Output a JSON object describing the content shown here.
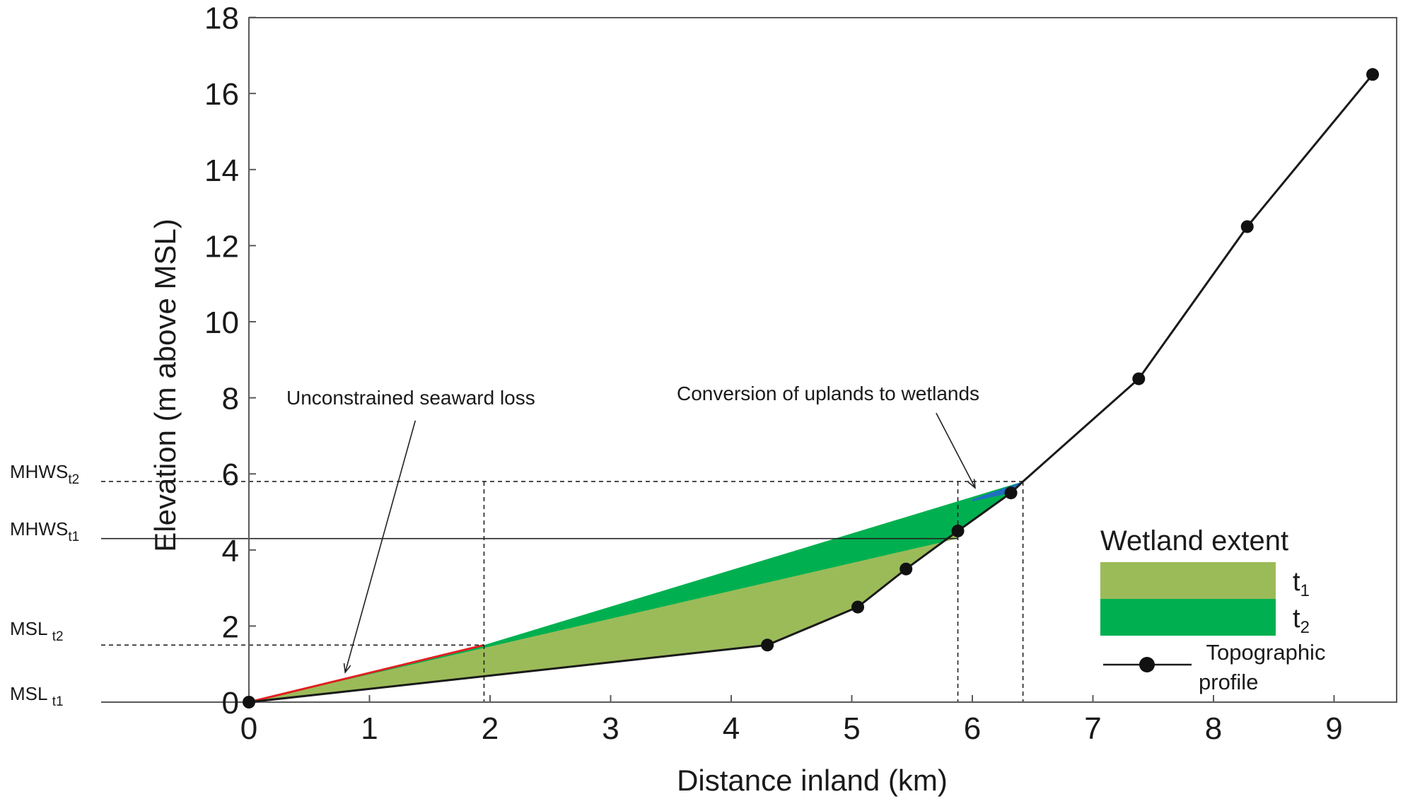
{
  "chart_data": {
    "type": "line",
    "xlabel": "Distance inland (km)",
    "ylabel": "Elevation (m above MSL)",
    "xlim": [
      0,
      9.3
    ],
    "ylim": [
      0,
      18
    ],
    "x_ticks": [
      "0",
      "1",
      "2",
      "3",
      "4",
      "5",
      "6",
      "7",
      "8",
      "9"
    ],
    "y_ticks": [
      "0",
      "2",
      "4",
      "6",
      "8",
      "10",
      "12",
      "14",
      "16",
      "18"
    ],
    "grid": false,
    "series": [
      {
        "name": "Topographic profile",
        "x": [
          0,
          4.3,
          5.05,
          5.45,
          5.88,
          6.32,
          6.42,
          7.38,
          8.28,
          9.32
        ],
        "y": [
          0,
          1.5,
          2.5,
          3.5,
          4.5,
          5.5,
          5.8,
          8.5,
          12.5,
          16.5
        ],
        "markers": [
          true,
          true,
          true,
          true,
          true,
          true,
          false,
          true,
          true,
          true
        ],
        "color": "#1a1a1a"
      }
    ],
    "levels": [
      {
        "label": "MHWS",
        "sub": "t2",
        "y": 5.8,
        "style": "dashed",
        "x_end": 6.42
      },
      {
        "label": "MHWS",
        "sub": "t1",
        "y": 4.3,
        "style": "solid",
        "x_end": 5.88
      },
      {
        "label": "MSL ",
        "sub": "t2",
        "y": 1.5,
        "style": "dashed",
        "x_end": 1.95
      },
      {
        "label": "MSL ",
        "sub": "t1",
        "y": 0,
        "style": "solid",
        "x_end": 0
      }
    ],
    "vlines": [
      {
        "x": 1.95,
        "y_top": 5.8
      },
      {
        "x": 5.88,
        "y_top": 5.8
      },
      {
        "x": 6.42,
        "y_top": 5.8
      }
    ],
    "wetland_t1": {
      "upper_x": [
        0,
        5.88
      ],
      "upper_y": [
        0,
        4.3
      ]
    },
    "wetland_t2": {
      "upper_x": [
        0,
        1.95,
        6.42
      ],
      "upper_y": [
        0,
        1.5,
        5.8
      ]
    },
    "annotations": [
      {
        "text": "Unconstrained seaward loss",
        "x": 1.05,
        "y": 8.0,
        "arrow_to": [
          0.8,
          0.8
        ],
        "arrow_from": [
          1.38,
          7.4
        ]
      },
      {
        "text": "Conversion of uplands to wetlands",
        "x": 3.6,
        "y": 8.1,
        "arrow_to": [
          6.02,
          5.65
        ],
        "arrow_from": [
          5.7,
          7.6
        ]
      }
    ],
    "colors": {
      "t1": "#9bbb59",
      "t2": "#00b050",
      "red": "#e02020",
      "blue": "#1f6fc0",
      "line": "#1a1a1a"
    },
    "legend": {
      "title": "Wetland extent",
      "items": [
        {
          "label": "t",
          "sub": "1",
          "color": "#9bbb59"
        },
        {
          "label": "t",
          "sub": "2",
          "color": "#00b050"
        }
      ],
      "profile_label_line1": "Topographic",
      "profile_label_line2": "profile",
      "position": "bottom-right"
    }
  }
}
